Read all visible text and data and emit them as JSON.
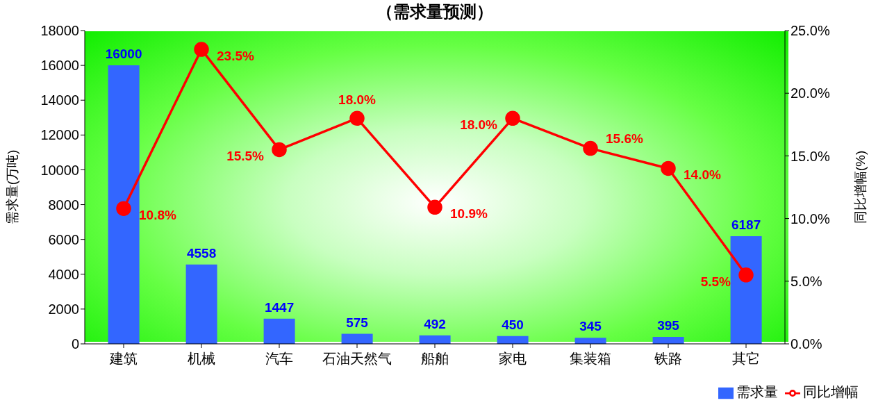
{
  "chart_data": {
    "type": "bar",
    "title": "（需求量预测）",
    "ylabel": "需求量(万吨)",
    "y2label": "同比增幅(%)",
    "categories": [
      "建筑",
      "机械",
      "汽车",
      "石油天然气",
      "船舶",
      "家电",
      "集装箱",
      "铁路",
      "其它"
    ],
    "series": [
      {
        "name": "需求量",
        "color": "#3366ff",
        "values": [
          16000,
          4558,
          1447,
          575,
          492,
          450,
          345,
          395,
          6187
        ],
        "data_labels": true
      },
      {
        "name": "同比增幅",
        "type": "line",
        "axis": "y2",
        "color": "#ff0000",
        "marker": "circle",
        "values": [
          10.8,
          23.5,
          15.5,
          18.0,
          10.9,
          18.0,
          15.6,
          14.0,
          5.5
        ],
        "value_labels": [
          "10.8%",
          "23.5%",
          "15.5%",
          "18.0%",
          "10.9%",
          "18.0%",
          "15.6%",
          "14.0%",
          "5.5%"
        ]
      }
    ],
    "ylim": [
      0,
      18000
    ],
    "yticks": [
      0,
      2000,
      4000,
      6000,
      8000,
      10000,
      12000,
      14000,
      16000,
      18000
    ],
    "y2lim": [
      0,
      25
    ],
    "y2ticks": [
      {
        "value": 0,
        "label": "0.0%"
      },
      {
        "value": 5,
        "label": "5.0%"
      },
      {
        "value": 10,
        "label": "10.0%"
      },
      {
        "value": 15,
        "label": "15.0%"
      },
      {
        "value": 20,
        "label": "20.0%"
      },
      {
        "value": 25,
        "label": "25.0%"
      }
    ],
    "grid": false,
    "legend": "bottom right"
  }
}
